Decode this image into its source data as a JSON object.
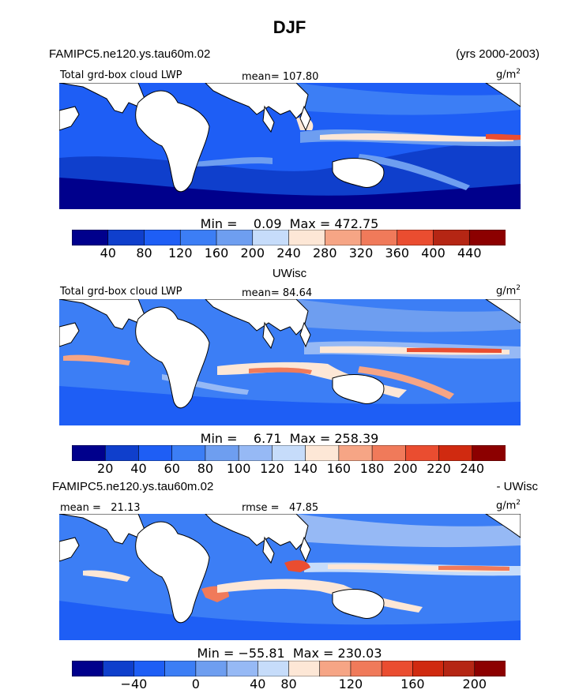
{
  "figure": {
    "season": "DJF",
    "model_case": "FAMIPC5.ne120.ys.tau60m.02",
    "years": "(yrs 2000-2003)",
    "panel2_title": "UWisc",
    "diff_left": "FAMIPC5.ne120.ys.tau60m.02",
    "diff_right": "- UWisc"
  },
  "chart_data": [
    {
      "type": "heatmap",
      "title": "Total grd-box cloud LWP",
      "mean_label": "mean= 107.80",
      "units_base": "g/m",
      "units_sup": "2",
      "stats": "Min =    0.09  Max = 472.75",
      "colorbar": {
        "ticks": [
          "40",
          "80",
          "120",
          "160",
          "200",
          "240",
          "280",
          "320",
          "360",
          "400",
          "440"
        ],
        "colors": [
          "#00008c",
          "#0f3fcc",
          "#1e5ef5",
          "#3c7ef5",
          "#6e9ef0",
          "#c6dcfa",
          "#fde7d6",
          "#f6a585",
          "#f07a5a",
          "#ea4d30",
          "#b52614",
          "#8c0000"
        ]
      }
    },
    {
      "type": "heatmap",
      "title": "Total grd-box cloud LWP",
      "mean_label": "mean=  84.64",
      "units_base": "g/m",
      "units_sup": "2",
      "stats": "Min =    6.71  Max = 258.39",
      "colorbar": {
        "ticks": [
          "20",
          "40",
          "60",
          "80",
          "100",
          "120",
          "140",
          "160",
          "180",
          "200",
          "220",
          "240"
        ],
        "colors": [
          "#00008c",
          "#0f3fcc",
          "#1e5ef5",
          "#3c7ef5",
          "#6e9ef0",
          "#96b9f5",
          "#c6dcfa",
          "#fde7d6",
          "#f6a585",
          "#f07a5a",
          "#ea4d30",
          "#d02a10",
          "#8c0000"
        ]
      }
    },
    {
      "type": "heatmap",
      "title": "",
      "mean_label": "mean =   21.13",
      "rmse_label": "rmse =   47.85",
      "units_base": "g/m",
      "units_sup": "2",
      "stats": "Min = −55.81  Max = 230.03",
      "colorbar": {
        "ticks": [
          "−40",
          "0",
          "40",
          "80",
          "120",
          "160",
          "200"
        ],
        "colors": [
          "#00008c",
          "#0f3fcc",
          "#1e5ef5",
          "#3c7ef5",
          "#6e9ef0",
          "#96b9f5",
          "#c6dcfa",
          "#fde7d6",
          "#f6a585",
          "#f07a5a",
          "#ea4d30",
          "#d02a10",
          "#b52614",
          "#8c0000"
        ]
      }
    }
  ]
}
